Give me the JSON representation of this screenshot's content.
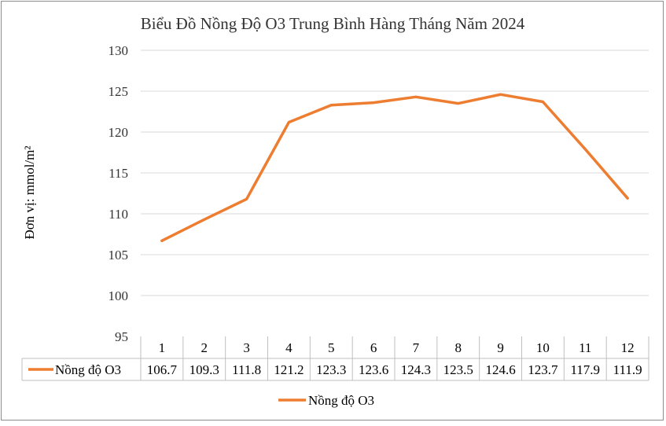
{
  "chart_data": {
    "type": "line",
    "title": "Biểu Đồ Nồng Độ O3 Trung Bình Hàng Tháng Năm 2024",
    "ylabel": "Đơn vị: mmol/m²",
    "xlabel": "",
    "categories": [
      "1",
      "2",
      "3",
      "4",
      "5",
      "6",
      "7",
      "8",
      "9",
      "10",
      "11",
      "12"
    ],
    "series": [
      {
        "name": "Nồng độ O3",
        "values": [
          106.7,
          109.3,
          111.8,
          121.2,
          123.3,
          123.6,
          124.3,
          123.5,
          124.6,
          123.7,
          117.9,
          111.9
        ],
        "value_labels": [
          "106.7",
          "109.3",
          "111.8",
          "121.2",
          "123.3",
          "123.6",
          "124.3",
          "123.5",
          "124.6",
          "123.7",
          "117.9",
          "111.9"
        ],
        "color": "#ED7D31"
      }
    ],
    "ylim": [
      95,
      130
    ],
    "yticks": [
      "95",
      "100",
      "105",
      "110",
      "115",
      "120",
      "125",
      "130"
    ],
    "grid": true,
    "data_table": true,
    "legend_position": "bottom",
    "legend": [
      "Nồng độ O3"
    ]
  }
}
